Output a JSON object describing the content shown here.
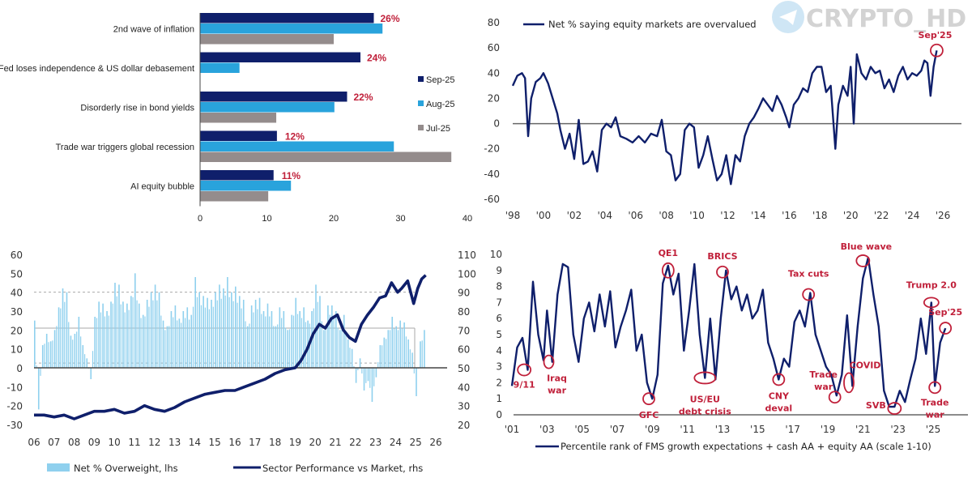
{
  "watermark": {
    "text": "CRYPTO_HD",
    "icon": "telegram-paper-plane-icon"
  },
  "colors": {
    "navy": "#0f1f6b",
    "lightblue": "#29a3dc",
    "gray": "#948c8c",
    "red": "#c0203a",
    "barlight": "#8fd0ee"
  },
  "chart_data": [
    {
      "id": "tail-risks",
      "type": "bar",
      "orientation": "horizontal",
      "categories": [
        "2nd wave of inflation",
        "Fed loses independence & US dollar debasement",
        "Disorderly rise in bond yields",
        "Trade war triggers global recession",
        "AI equity bubble"
      ],
      "series": [
        {
          "name": "Sep-25",
          "values": [
            26,
            24,
            22,
            11.5,
            11
          ]
        },
        {
          "name": "Aug-25",
          "values": [
            27.3,
            5.9,
            20.1,
            29,
            13.6
          ]
        },
        {
          "name": "Jul-25",
          "values": [
            20,
            null,
            11.4,
            37.6,
            10.2
          ]
        }
      ],
      "data_labels": [
        "26%",
        "24%",
        "22%",
        "12%",
        "11%"
      ],
      "xlim": [
        0,
        40
      ],
      "xticks": [
        "0",
        "10",
        "20",
        "30",
        "40"
      ],
      "legend": "right"
    },
    {
      "id": "overvalued",
      "type": "line",
      "series_name": "Net % saying equity markets are overvalued",
      "ylim": [
        -60,
        80
      ],
      "yticks": [
        "80",
        "60",
        "40",
        "20",
        "0",
        "-20",
        "-40",
        "-60"
      ],
      "xlim": [
        1998,
        2026
      ],
      "xticks": [
        "'98",
        "'00",
        "'02",
        "'04",
        "'06",
        "'08",
        "'10",
        "'12",
        "'14",
        "'16",
        "'18",
        "'20",
        "'22",
        "'24",
        "'26"
      ],
      "x": [
        1998.0,
        1998.3,
        1998.6,
        1998.8,
        1999.0,
        1999.2,
        1999.5,
        1999.8,
        2000.0,
        2000.3,
        2000.6,
        2000.9,
        2001.1,
        2001.4,
        2001.7,
        2002.0,
        2002.3,
        2002.6,
        2002.9,
        2003.2,
        2003.5,
        2003.8,
        2004.1,
        2004.4,
        2004.7,
        2005.0,
        2005.4,
        2005.8,
        2006.2,
        2006.6,
        2007.0,
        2007.4,
        2007.7,
        2008.0,
        2008.3,
        2008.6,
        2008.9,
        2009.2,
        2009.5,
        2009.8,
        2010.1,
        2010.4,
        2010.7,
        2011.0,
        2011.3,
        2011.6,
        2011.9,
        2012.2,
        2012.5,
        2012.8,
        2013.1,
        2013.4,
        2013.7,
        2014.0,
        2014.3,
        2014.6,
        2014.9,
        2015.2,
        2015.5,
        2015.8,
        2016.0,
        2016.3,
        2016.6,
        2016.9,
        2017.2,
        2017.5,
        2017.8,
        2018.1,
        2018.4,
        2018.7,
        2019.0,
        2019.2,
        2019.5,
        2019.8,
        2020.0,
        2020.2,
        2020.4,
        2020.7,
        2021.0,
        2021.3,
        2021.6,
        2021.9,
        2022.2,
        2022.5,
        2022.8,
        2023.1,
        2023.4,
        2023.7,
        2024.0,
        2024.3,
        2024.6,
        2024.8,
        2025.0,
        2025.2,
        2025.4,
        2025.6
      ],
      "y": [
        30,
        38,
        40,
        36,
        -10,
        20,
        33,
        36,
        40,
        32,
        20,
        8,
        -5,
        -20,
        -8,
        -28,
        3,
        -32,
        -30,
        -22,
        -38,
        -5,
        0,
        -3,
        5,
        -10,
        -12,
        -15,
        -10,
        -15,
        -8,
        -10,
        3,
        -22,
        -25,
        -45,
        -40,
        -5,
        0,
        -3,
        -35,
        -25,
        -10,
        -28,
        -45,
        -40,
        -25,
        -48,
        -25,
        -30,
        -10,
        0,
        5,
        12,
        20,
        15,
        10,
        22,
        15,
        5,
        -3,
        15,
        20,
        28,
        25,
        40,
        45,
        45,
        25,
        30,
        -20,
        15,
        30,
        22,
        45,
        0,
        55,
        40,
        35,
        45,
        40,
        42,
        28,
        35,
        25,
        38,
        45,
        35,
        40,
        38,
        42,
        50,
        48,
        22,
        45,
        58
      ]
    },
    {
      "id": "sector-overweight",
      "type": "bar+line",
      "series": [
        {
          "name": "Net % Overweight, lhs",
          "type": "bar",
          "axis": "left"
        },
        {
          "name": "Sector Performance vs Market, rhs",
          "type": "line",
          "axis": "right"
        }
      ],
      "ylim_left": [
        -30,
        60
      ],
      "ylim_right": [
        20,
        110
      ],
      "yticks_left": [
        "60",
        "50",
        "40",
        "30",
        "20",
        "10",
        "0",
        "-10",
        "-20",
        "-30"
      ],
      "yticks_right": [
        "110",
        "100",
        "90",
        "80",
        "70",
        "60",
        "50",
        "40",
        "30",
        "20"
      ],
      "xlim": [
        2006,
        2026
      ],
      "xticks": [
        "06",
        "07",
        "08",
        "09",
        "10",
        "11",
        "12",
        "13",
        "14",
        "15",
        "16",
        "17",
        "18",
        "19",
        "20",
        "21",
        "22",
        "23",
        "24",
        "25",
        "26"
      ],
      "reference_lines_left": [
        {
          "value": 40,
          "style": "dashed"
        },
        {
          "value": 21,
          "style": "solid"
        },
        {
          "value": 2.5,
          "style": "dashed"
        }
      ],
      "bars_x": [
        2006.0,
        2006.2,
        2006.4,
        2006.6,
        2006.8,
        2007.0,
        2007.2,
        2007.4,
        2007.6,
        2007.8,
        2008.0,
        2008.2,
        2008.4,
        2008.6,
        2008.8,
        2009.0,
        2009.2,
        2009.4,
        2009.6,
        2009.8,
        2010.0,
        2010.2,
        2010.4,
        2010.6,
        2010.8,
        2011.0,
        2011.2,
        2011.4,
        2011.6,
        2011.8,
        2012.0,
        2012.2,
        2012.4,
        2012.6,
        2012.8,
        2013.0,
        2013.2,
        2013.4,
        2013.6,
        2013.8,
        2014.0,
        2014.2,
        2014.4,
        2014.6,
        2014.8,
        2015.0,
        2015.2,
        2015.4,
        2015.6,
        2015.8,
        2016.0,
        2016.2,
        2016.4,
        2016.6,
        2016.8,
        2017.0,
        2017.2,
        2017.4,
        2017.6,
        2017.8,
        2018.0,
        2018.2,
        2018.4,
        2018.6,
        2018.8,
        2019.0,
        2019.2,
        2019.4,
        2019.6,
        2019.8,
        2020.0,
        2020.2,
        2020.4,
        2020.6,
        2020.8,
        2021.0,
        2021.2,
        2021.4,
        2021.6,
        2021.8,
        2022.0,
        2022.2,
        2022.4,
        2022.6,
        2022.8,
        2023.0,
        2023.2,
        2023.4,
        2023.6,
        2023.8,
        2024.0,
        2024.2,
        2024.4,
        2024.6,
        2024.8,
        2025.0,
        2025.2,
        2025.4
      ],
      "bars_y": [
        25,
        -22,
        12,
        18,
        14,
        20,
        32,
        42,
        40,
        17,
        18,
        27,
        12,
        5,
        -6,
        27,
        35,
        34,
        30,
        35,
        45,
        44,
        35,
        34,
        38,
        50,
        34,
        28,
        36,
        40,
        44,
        40,
        25,
        22,
        30,
        33,
        26,
        30,
        32,
        28,
        48,
        40,
        38,
        37,
        36,
        40,
        44,
        42,
        48,
        40,
        43,
        38,
        36,
        22,
        33,
        36,
        37,
        30,
        34,
        30,
        22,
        32,
        30,
        20,
        28,
        37,
        30,
        32,
        25,
        30,
        44,
        38,
        20,
        33,
        33,
        30,
        20,
        28,
        15,
        10,
        -8,
        5,
        -12,
        -7,
        -18,
        -5,
        12,
        16,
        20,
        27,
        22,
        25,
        24,
        15,
        8,
        -15,
        14,
        20
      ],
      "line_x": [
        2006.0,
        2006.5,
        2007.0,
        2007.5,
        2008.0,
        2008.5,
        2009.0,
        2009.5,
        2010.0,
        2010.5,
        2011.0,
        2011.5,
        2012.0,
        2012.5,
        2013.0,
        2013.5,
        2014.0,
        2014.5,
        2015.0,
        2015.5,
        2016.0,
        2016.5,
        2017.0,
        2017.5,
        2018.0,
        2018.5,
        2019.0,
        2019.3,
        2019.6,
        2019.9,
        2020.2,
        2020.5,
        2020.8,
        2021.1,
        2021.4,
        2021.7,
        2022.0,
        2022.3,
        2022.6,
        2022.9,
        2023.2,
        2023.5,
        2023.8,
        2024.1,
        2024.3,
        2024.6,
        2024.9,
        2025.1,
        2025.3,
        2025.5
      ],
      "line_y": [
        25,
        25,
        24,
        25,
        23,
        25,
        27,
        27,
        28,
        26,
        27,
        30,
        28,
        27,
        29,
        32,
        34,
        36,
        37,
        38,
        38,
        40,
        42,
        44,
        47,
        49,
        50,
        54,
        60,
        68,
        73,
        71,
        76,
        78,
        70,
        66,
        64,
        73,
        78,
        82,
        87,
        88,
        95,
        90,
        92,
        96,
        84,
        92,
        97,
        99
      ]
    },
    {
      "id": "fms-sentiment",
      "type": "line",
      "series_name": "Percentile rank of FMS growth expectations + cash AA + equity AA (scale 1-10)",
      "ylim": [
        0,
        10
      ],
      "yticks": [
        "10",
        "9",
        "8",
        "7",
        "6",
        "5",
        "4",
        "3",
        "2",
        "1",
        "0"
      ],
      "xlim": [
        2001,
        2027
      ],
      "xticks": [
        "'01",
        "'03",
        "'05",
        "'07",
        "'09",
        "'11",
        "'13",
        "'15",
        "'17",
        "'19",
        "'21",
        "'23",
        "'25"
      ],
      "x": [
        2001.0,
        2001.3,
        2001.6,
        2001.9,
        2002.2,
        2002.5,
        2002.8,
        2003.0,
        2003.3,
        2003.6,
        2003.9,
        2004.2,
        2004.5,
        2004.8,
        2005.1,
        2005.4,
        2005.7,
        2006.0,
        2006.3,
        2006.6,
        2006.9,
        2007.2,
        2007.5,
        2007.8,
        2008.1,
        2008.4,
        2008.7,
        2009.0,
        2009.3,
        2009.6,
        2009.9,
        2010.2,
        2010.5,
        2010.8,
        2011.1,
        2011.4,
        2011.7,
        2012.0,
        2012.3,
        2012.6,
        2012.9,
        2013.2,
        2013.5,
        2013.8,
        2014.1,
        2014.4,
        2014.7,
        2015.0,
        2015.3,
        2015.6,
        2015.9,
        2016.2,
        2016.5,
        2016.8,
        2017.1,
        2017.4,
        2017.7,
        2018.0,
        2018.3,
        2018.6,
        2018.9,
        2019.2,
        2019.5,
        2019.8,
        2020.1,
        2020.4,
        2020.7,
        2021.0,
        2021.3,
        2021.6,
        2021.9,
        2022.2,
        2022.5,
        2022.8,
        2023.1,
        2023.4,
        2023.7,
        2024.0,
        2024.3,
        2024.6,
        2024.9,
        2025.1,
        2025.4,
        2025.7
      ],
      "y": [
        1.8,
        4.2,
        4.8,
        2.8,
        8.3,
        5.0,
        3.4,
        6.5,
        3.3,
        7.5,
        9.4,
        9.2,
        5.0,
        3.3,
        6.0,
        7.0,
        5.2,
        7.5,
        5.5,
        7.7,
        4.2,
        5.5,
        6.5,
        7.8,
        4.0,
        5.0,
        2.0,
        1.0,
        2.5,
        8.2,
        9.3,
        7.5,
        8.8,
        4.0,
        6.5,
        9.4,
        5.0,
        2.3,
        6.0,
        2.2,
        6.0,
        9.0,
        7.2,
        8.0,
        6.5,
        7.5,
        6.0,
        6.5,
        7.8,
        4.5,
        3.5,
        2.2,
        3.5,
        3.0,
        5.8,
        6.5,
        5.5,
        7.6,
        5.0,
        4.0,
        3.0,
        2.5,
        1.2,
        2.5,
        6.2,
        1.8,
        5.5,
        8.5,
        9.8,
        7.5,
        5.5,
        1.5,
        0.5,
        0.5,
        1.5,
        0.8,
        2.2,
        3.5,
        6.0,
        3.8,
        7.0,
        1.8,
        4.5,
        5.4
      ],
      "annotations": [
        {
          "text": "9/11",
          "x": 2001.7,
          "y": 2.8
        },
        {
          "text": "Iraq war",
          "x": 2003.1,
          "y": 3.3
        },
        {
          "text": "GFC",
          "x": 2008.8,
          "y": 1.0
        },
        {
          "text": "QE1",
          "x": 2009.9,
          "y": 9.0
        },
        {
          "text": "US/EU debt crisis",
          "x": 2012.0,
          "y": 2.3
        },
        {
          "text": "BRICS",
          "x": 2013.0,
          "y": 8.9
        },
        {
          "text": "CNY deval",
          "x": 2016.2,
          "y": 2.2
        },
        {
          "text": "Tax cuts",
          "x": 2017.9,
          "y": 7.5
        },
        {
          "text": "Trade war",
          "x": 2019.4,
          "y": 1.1
        },
        {
          "text": "COVID",
          "x": 2020.2,
          "y": 2.0
        },
        {
          "text": "Blue wave",
          "x": 2021.0,
          "y": 9.6
        },
        {
          "text": "SVB",
          "x": 2022.8,
          "y": 0.4
        },
        {
          "text": "Trump 2.0",
          "x": 2024.9,
          "y": 7.0
        },
        {
          "text": "Trade war",
          "x": 2025.1,
          "y": 1.7
        },
        {
          "text": "Sep'25",
          "x": 2025.7,
          "y": 5.4
        }
      ]
    }
  ],
  "top_right_annotation": "Sep'25"
}
